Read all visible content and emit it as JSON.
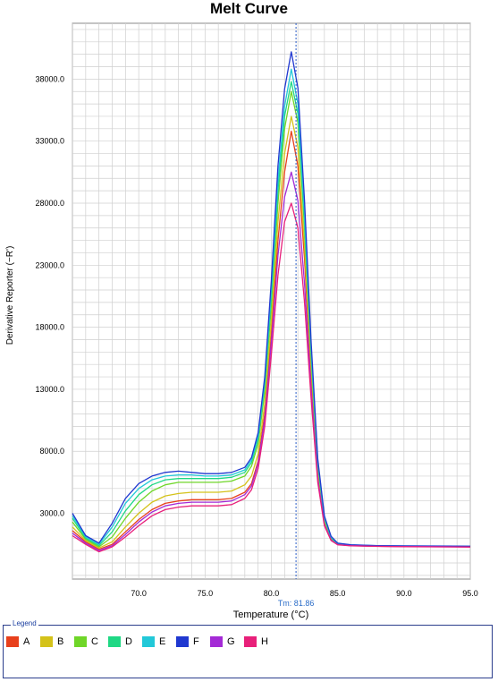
{
  "chart_data": {
    "type": "line",
    "title": "Melt Curve",
    "xlabel": "Temperature (°C)",
    "ylabel": "Derivative Reporter (−R')",
    "xlim": [
      65.0,
      95.0
    ],
    "ylim": [
      -2300,
      42500
    ],
    "x_ticks": [
      70.0,
      75.0,
      80.0,
      85.0,
      90.0,
      95.0
    ],
    "x_tick_labels": [
      "70.0",
      "75.0",
      "80.0",
      "85.0",
      "90.0",
      "95.0"
    ],
    "y_ticks": [
      3000,
      8000,
      13000,
      18000,
      23000,
      28000,
      33000,
      38000
    ],
    "y_tick_labels": [
      "3000.0",
      "8000.0",
      "13000.0",
      "18000.0",
      "23000.0",
      "28000.0",
      "33000.0",
      "38000.0"
    ],
    "grid": true,
    "tm_marker": {
      "x": 81.86,
      "label": "Tm: 81.86"
    },
    "legend": {
      "title": "Legend",
      "placement": "bottom",
      "entries": [
        {
          "label": "A",
          "color": "#e8401c"
        },
        {
          "label": "B",
          "color": "#d4c21a"
        },
        {
          "label": "C",
          "color": "#6fd628"
        },
        {
          "label": "D",
          "color": "#1fd884"
        },
        {
          "label": "E",
          "color": "#22c8d8"
        },
        {
          "label": "F",
          "color": "#2038d0"
        },
        {
          "label": "G",
          "color": "#a42ad6"
        },
        {
          "label": "H",
          "color": "#e8207a"
        }
      ]
    },
    "x": [
      65.0,
      66.0,
      67.0,
      68.0,
      69.0,
      70.0,
      71.0,
      72.0,
      73.0,
      74.0,
      75.0,
      76.0,
      77.0,
      78.0,
      78.5,
      79.0,
      79.5,
      80.0,
      80.5,
      81.0,
      81.5,
      82.0,
      82.5,
      83.0,
      83.5,
      84.0,
      84.5,
      85.0,
      86.0,
      88.0,
      90.0,
      92.0,
      95.0
    ],
    "series": [
      {
        "color": "#e8401c",
        "values": [
          1600,
          700,
          100,
          500,
          1500,
          2500,
          3300,
          3800,
          4000,
          4100,
          4100,
          4100,
          4200,
          4700,
          5400,
          7200,
          11000,
          17500,
          25000,
          30500,
          33800,
          31000,
          23500,
          14000,
          6200,
          2200,
          900,
          500,
          400,
          350,
          330,
          320,
          300
        ]
      },
      {
        "color": "#d4c21a",
        "values": [
          1900,
          800,
          200,
          700,
          1900,
          3000,
          3900,
          4400,
          4600,
          4700,
          4700,
          4700,
          4800,
          5300,
          6000,
          7800,
          11800,
          18500,
          26500,
          32000,
          35000,
          32500,
          24500,
          14800,
          6600,
          2400,
          950,
          520,
          420,
          360,
          340,
          330,
          310
        ]
      },
      {
        "color": "#6fd628",
        "values": [
          2300,
          900,
          300,
          1100,
          2600,
          3900,
          4800,
          5300,
          5500,
          5500,
          5500,
          5500,
          5600,
          6000,
          6800,
          8600,
          12800,
          19800,
          28000,
          34000,
          37000,
          34500,
          26000,
          15500,
          6900,
          2500,
          1000,
          540,
          430,
          370,
          350,
          340,
          320
        ]
      },
      {
        "color": "#1fd884",
        "values": [
          2600,
          1000,
          400,
          1500,
          3200,
          4500,
          5300,
          5700,
          5800,
          5800,
          5800,
          5800,
          5900,
          6300,
          7100,
          9000,
          13300,
          20500,
          29000,
          35000,
          37800,
          35200,
          26500,
          15800,
          7000,
          2600,
          1050,
          560,
          440,
          380,
          360,
          350,
          330
        ]
      },
      {
        "color": "#22c8d8",
        "values": [
          2800,
          1100,
          500,
          1900,
          3800,
          5000,
          5700,
          6000,
          6100,
          6100,
          6000,
          6000,
          6100,
          6500,
          7300,
          9200,
          13600,
          21000,
          29800,
          35800,
          38800,
          36000,
          27200,
          16200,
          7200,
          2700,
          1100,
          580,
          450,
          390,
          370,
          360,
          340
        ]
      },
      {
        "color": "#2038d0",
        "values": [
          3000,
          1200,
          600,
          2200,
          4200,
          5400,
          6000,
          6300,
          6400,
          6300,
          6200,
          6200,
          6300,
          6700,
          7500,
          9500,
          14000,
          21800,
          31000,
          37200,
          40200,
          37300,
          28200,
          16800,
          7400,
          2800,
          1150,
          600,
          460,
          400,
          380,
          370,
          350
        ]
      },
      {
        "color": "#a42ad6",
        "values": [
          1400,
          600,
          0,
          400,
          1300,
          2300,
          3100,
          3600,
          3800,
          3900,
          3900,
          3900,
          4000,
          4500,
          5200,
          7000,
          10600,
          16800,
          23800,
          28500,
          30500,
          28200,
          21500,
          13000,
          5800,
          2100,
          850,
          480,
          390,
          340,
          320,
          310,
          290
        ]
      },
      {
        "color": "#e8207a",
        "values": [
          1200,
          500,
          -100,
          300,
          1100,
          2000,
          2800,
          3300,
          3500,
          3600,
          3600,
          3600,
          3700,
          4200,
          4900,
          6600,
          10000,
          15800,
          22200,
          26500,
          28000,
          26000,
          20000,
          12200,
          5500,
          2000,
          800,
          460,
          380,
          330,
          310,
          300,
          280
        ]
      }
    ]
  }
}
